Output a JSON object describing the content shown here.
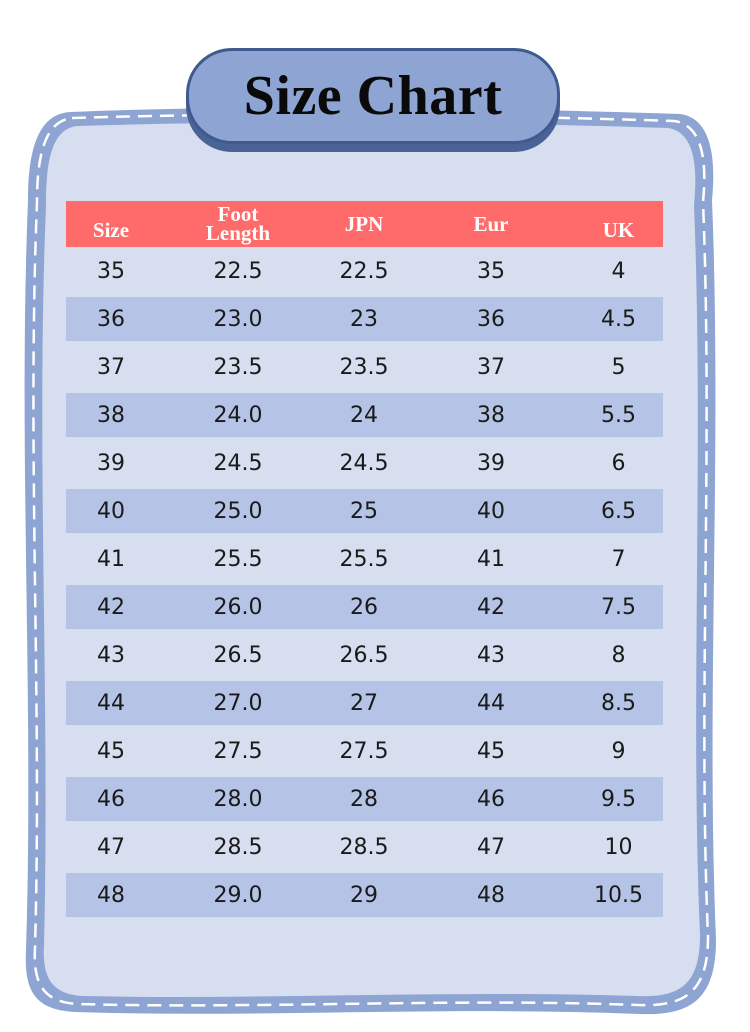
{
  "title": "Size Chart",
  "colors": {
    "card_border": "#8ea4d2",
    "card_fill": "#d6deef",
    "header_bg": "#ff6b6b",
    "stripe": "#b4c3e6",
    "title_pill": "#8ea4d2"
  },
  "headers": {
    "size": "Size",
    "foot_line1": "Foot",
    "foot_line2": "Length",
    "jpn": "JPN",
    "eur": "Eur",
    "uk": "UK"
  },
  "rows": [
    {
      "size": "35",
      "foot": "22.5",
      "jpn": "22.5",
      "eur": "35",
      "uk": "4"
    },
    {
      "size": "36",
      "foot": "23.0",
      "jpn": "23",
      "eur": "36",
      "uk": "4.5"
    },
    {
      "size": "37",
      "foot": "23.5",
      "jpn": "23.5",
      "eur": "37",
      "uk": "5"
    },
    {
      "size": "38",
      "foot": "24.0",
      "jpn": "24",
      "eur": "38",
      "uk": "5.5"
    },
    {
      "size": "39",
      "foot": "24.5",
      "jpn": "24.5",
      "eur": "39",
      "uk": "6"
    },
    {
      "size": "40",
      "foot": "25.0",
      "jpn": "25",
      "eur": "40",
      "uk": "6.5"
    },
    {
      "size": "41",
      "foot": "25.5",
      "jpn": "25.5",
      "eur": "41",
      "uk": "7"
    },
    {
      "size": "42",
      "foot": "26.0",
      "jpn": "26",
      "eur": "42",
      "uk": "7.5"
    },
    {
      "size": "43",
      "foot": "26.5",
      "jpn": "26.5",
      "eur": "43",
      "uk": "8"
    },
    {
      "size": "44",
      "foot": "27.0",
      "jpn": "27",
      "eur": "44",
      "uk": "8.5"
    },
    {
      "size": "45",
      "foot": "27.5",
      "jpn": "27.5",
      "eur": "45",
      "uk": "9"
    },
    {
      "size": "46",
      "foot": "28.0",
      "jpn": "28",
      "eur": "46",
      "uk": "9.5"
    },
    {
      "size": "47",
      "foot": "28.5",
      "jpn": "28.5",
      "eur": "47",
      "uk": "10"
    },
    {
      "size": "48",
      "foot": "29.0",
      "jpn": "29",
      "eur": "48",
      "uk": "10.5"
    }
  ]
}
